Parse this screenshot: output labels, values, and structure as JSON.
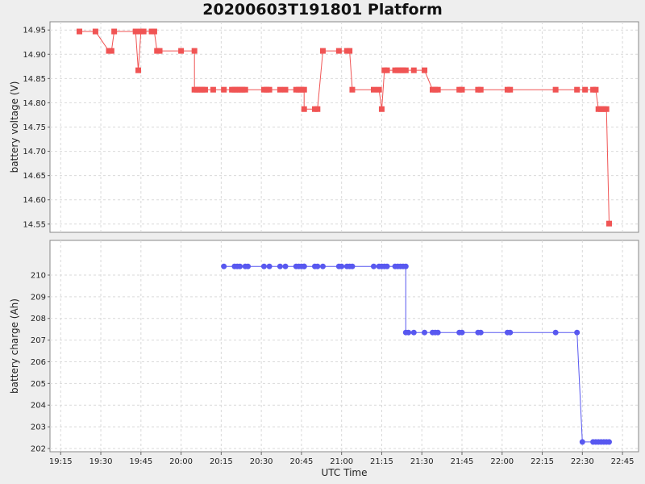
{
  "title": "20200603T191801 Platform",
  "chart_data": [
    {
      "type": "line",
      "ylabel": "battery voltage (V)",
      "ylim": [
        14.533,
        14.967
      ],
      "yticks": [
        "14.95",
        "14.90",
        "14.85",
        "14.80",
        "14.75",
        "14.70",
        "14.65",
        "14.60",
        "14.55"
      ],
      "ytick_values": [
        14.95,
        14.9,
        14.85,
        14.8,
        14.75,
        14.7,
        14.65,
        14.6,
        14.55
      ],
      "grid": true,
      "marker": "square",
      "color": "#f05454",
      "series": [
        {
          "x": [
            "19:22",
            "19:28",
            "19:33",
            "19:34",
            "19:35",
            "19:43",
            "19:44",
            "19:45",
            "19:46",
            "19:49",
            "19:50",
            "19:51",
            "19:52",
            "20:00",
            "20:05",
            "20:05",
            "20:06",
            "20:07",
            "20:08",
            "20:09",
            "20:12",
            "20:16",
            "20:19",
            "20:20",
            "20:21",
            "20:22",
            "20:23",
            "20:24",
            "20:31",
            "20:32",
            "20:33",
            "20:37",
            "20:39",
            "20:43",
            "20:44",
            "20:45",
            "20:46",
            "20:46",
            "20:50",
            "20:51",
            "20:53",
            "20:59",
            "21:02",
            "21:03",
            "21:04",
            "21:12",
            "21:14",
            "21:15",
            "21:16",
            "21:17",
            "21:20",
            "21:21",
            "21:22",
            "21:23",
            "21:24",
            "21:27",
            "21:31",
            "21:34",
            "21:35",
            "21:36",
            "21:44",
            "21:45",
            "21:51",
            "21:52",
            "22:02",
            "22:03",
            "22:20",
            "22:28",
            "22:31",
            "22:34",
            "22:35",
            "22:36",
            "22:37",
            "22:38",
            "22:39",
            "22:40"
          ],
          "y": [
            14.947,
            14.947,
            14.907,
            14.907,
            14.947,
            14.947,
            14.867,
            14.947,
            14.947,
            14.947,
            14.947,
            14.907,
            14.907,
            14.907,
            14.907,
            14.827,
            14.827,
            14.827,
            14.827,
            14.827,
            14.827,
            14.827,
            14.827,
            14.827,
            14.827,
            14.827,
            14.827,
            14.827,
            14.827,
            14.827,
            14.827,
            14.827,
            14.827,
            14.827,
            14.827,
            14.827,
            14.827,
            14.787,
            14.787,
            14.787,
            14.907,
            14.907,
            14.907,
            14.907,
            14.827,
            14.827,
            14.827,
            14.787,
            14.867,
            14.867,
            14.867,
            14.867,
            14.867,
            14.867,
            14.867,
            14.867,
            14.867,
            14.827,
            14.827,
            14.827,
            14.827,
            14.827,
            14.827,
            14.827,
            14.827,
            14.827,
            14.827,
            14.827,
            14.827,
            14.827,
            14.827,
            14.787,
            14.787,
            14.787,
            14.787,
            14.551
          ]
        }
      ]
    },
    {
      "type": "line",
      "ylabel": "battery charge (Ah)",
      "ylim": [
        201.85,
        211.6
      ],
      "yticks": [
        "210",
        "209",
        "208",
        "207",
        "206",
        "205",
        "204",
        "203",
        "202"
      ],
      "ytick_values": [
        210,
        209,
        208,
        207,
        206,
        205,
        204,
        203,
        202
      ],
      "grid": true,
      "marker": "circle",
      "color": "#5858f0",
      "xlabel": "UTC Time",
      "xticks": [
        "19:15",
        "19:30",
        "19:45",
        "20:00",
        "20:15",
        "20:30",
        "20:45",
        "21:00",
        "21:15",
        "21:30",
        "21:45",
        "22:00",
        "22:15",
        "22:30",
        "22:45"
      ],
      "series": [
        {
          "x": [
            "20:16",
            "20:20",
            "20:21",
            "20:22",
            "20:24",
            "20:25",
            "20:31",
            "20:33",
            "20:37",
            "20:39",
            "20:43",
            "20:44",
            "20:45",
            "20:46",
            "20:46",
            "20:50",
            "20:51",
            "20:53",
            "20:59",
            "21:00",
            "21:02",
            "21:03",
            "21:04",
            "21:12",
            "21:14",
            "21:15",
            "21:16",
            "21:17",
            "21:20",
            "21:21",
            "21:22",
            "21:23",
            "21:24",
            "21:24",
            "21:25",
            "21:27",
            "21:31",
            "21:34",
            "21:35",
            "21:36",
            "21:44",
            "21:45",
            "21:51",
            "21:52",
            "22:02",
            "22:03",
            "22:20",
            "22:28",
            "22:30",
            "22:34",
            "22:35",
            "22:36",
            "22:37",
            "22:38",
            "22:39",
            "22:40"
          ],
          "y": [
            210.4,
            210.4,
            210.4,
            210.4,
            210.4,
            210.4,
            210.4,
            210.4,
            210.4,
            210.4,
            210.4,
            210.4,
            210.4,
            210.4,
            210.4,
            210.4,
            210.4,
            210.4,
            210.4,
            210.4,
            210.4,
            210.4,
            210.4,
            210.4,
            210.4,
            210.4,
            210.4,
            210.4,
            210.4,
            210.4,
            210.4,
            210.4,
            210.4,
            207.35,
            207.35,
            207.35,
            207.35,
            207.35,
            207.35,
            207.35,
            207.35,
            207.35,
            207.35,
            207.35,
            207.35,
            207.35,
            207.35,
            207.35,
            202.3,
            202.3,
            202.3,
            202.3,
            202.3,
            202.3,
            202.3,
            202.3
          ]
        }
      ]
    }
  ]
}
